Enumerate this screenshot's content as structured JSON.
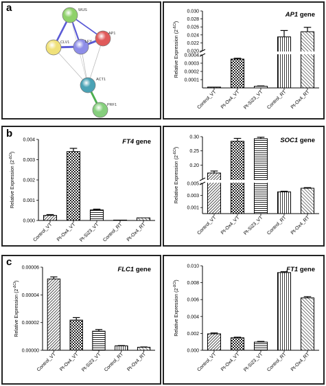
{
  "panel_labels": {
    "a": "a",
    "b": "b",
    "c": "c"
  },
  "network": {
    "nodes": [
      {
        "id": "wus",
        "label": "WUS",
        "color": "#8fd16a"
      },
      {
        "id": "clv1",
        "label": "CLV1",
        "color": "#f0e17a"
      },
      {
        "id": "lfy",
        "label": "LFY",
        "color": "#8e8ee8"
      },
      {
        "id": "ap1",
        "label": "AP1",
        "color": "#e05a5a"
      },
      {
        "id": "act1",
        "label": "ACT1",
        "color": "#4aa2b5"
      },
      {
        "id": "prf1",
        "label": "PRF1",
        "color": "#86cf7d"
      }
    ]
  },
  "chart_data": [
    {
      "id": "ap1",
      "type": "bar",
      "title_italic": "AP1",
      "title_rest": " gene",
      "ylabel": "Relative Expression (2",
      "ylabel_sup": "-ΔCt",
      "ylabel_close": ")",
      "categories": [
        "Control_VT",
        "Pt-Ox4_VT",
        "Pt-Si23_VT",
        "Control_RT",
        "Pt-Ox4_RT"
      ],
      "values": [
        1e-05,
        0.00035,
        2e-05,
        0.0235,
        0.0248
      ],
      "errors": [
        8e-07,
        1e-05,
        4e-06,
        0.0016,
        0.0011
      ],
      "patterns": [
        "stripe",
        "check",
        "hline",
        "vline",
        "diag"
      ],
      "axis_break": true,
      "segments": [
        {
          "range": [
            0.02,
            0.03
          ],
          "ticks": [
            "0.030",
            "0.028",
            "0.026",
            "0.024",
            "0.022",
            "0.020"
          ],
          "tick_values": [
            0.03,
            0.028,
            0.026,
            0.024,
            0.022,
            0.02
          ]
        },
        {
          "range": [
            0,
            0.0004
          ],
          "ticks": [
            "0.0004",
            "0.0003",
            "0.0002",
            "0.0001"
          ],
          "tick_values": [
            0.0004,
            0.0003,
            0.0002,
            0.0001
          ]
        }
      ]
    },
    {
      "id": "ft4",
      "type": "bar",
      "title_italic": "FT4",
      "title_rest": " gene",
      "ylabel": "Relative Expression (2",
      "ylabel_sup": "-ΔCt",
      "ylabel_close": ")",
      "categories": [
        "Control_VT",
        "Pt-Ox4_VT",
        "Pt-Si23_VT",
        "Control_RT",
        "Pt-Ox4_RT"
      ],
      "values": [
        0.00025,
        0.0034,
        0.00052,
        5e-06,
        0.00013
      ],
      "errors": [
        4e-05,
        0.00016,
        4e-05,
        2e-06,
        1e-05
      ],
      "patterns": [
        "stripe",
        "check",
        "hline",
        "vline",
        "diag"
      ],
      "axis_break": false,
      "segments": [
        {
          "range": [
            0,
            0.004
          ],
          "ticks": [
            "0.004",
            "0.003",
            "0.002",
            "0.001",
            "0.000"
          ],
          "tick_values": [
            0.004,
            0.003,
            0.002,
            0.001,
            0
          ]
        }
      ]
    },
    {
      "id": "soc1",
      "type": "bar",
      "title_italic": "SOC1",
      "title_rest": " gene",
      "ylabel": "Relative Expression (2",
      "ylabel_sup": "-ΔCt",
      "ylabel_close": ")",
      "categories": [
        "Control_VT",
        "Pt-Ox4_VT",
        "Pt-Si23_VT",
        "Control_RT",
        "Pt-Ox4_RT"
      ],
      "values": [
        0.172,
        0.284,
        0.293,
        0.0036,
        0.0042
      ],
      "errors": [
        0.007,
        0.01,
        0.005,
        0.0001,
        0.0001
      ],
      "patterns": [
        "stripe",
        "check",
        "hline",
        "vline",
        "diag"
      ],
      "axis_break": true,
      "segments": [
        {
          "range": [
            0.15,
            0.3
          ],
          "ticks": [
            "0.30",
            "0.25",
            "0.20"
          ],
          "tick_values": [
            0.3,
            0.25,
            0.2
          ]
        },
        {
          "range": [
            0,
            0.005
          ],
          "ticks": [
            "0.005",
            "0.003",
            "0.001"
          ],
          "tick_values": [
            0.005,
            0.003,
            0.001
          ]
        }
      ]
    },
    {
      "id": "flc1",
      "type": "bar",
      "title_italic": "FLC1",
      "title_rest": " gene",
      "ylabel": "Relative Expression (2",
      "ylabel_sup": "-ΔCt",
      "ylabel_close": ")",
      "categories": [
        "Control_VT",
        "Pt-Ox4_VT",
        "Pt-Si23_VT",
        "Control_RT",
        "Pt-Ox4_RT"
      ],
      "values": [
        5.15e-05,
        2.18e-05,
        1.38e-05,
        3.2e-06,
        2.2e-06
      ],
      "errors": [
        1.5e-06,
        1.8e-06,
        1.2e-06,
        2e-07,
        2e-07
      ],
      "patterns": [
        "stripe",
        "check",
        "hline",
        "vline",
        "diag"
      ],
      "axis_break": false,
      "segments": [
        {
          "range": [
            0,
            6e-05
          ],
          "ticks": [
            "0.00006",
            "0.00004",
            "0.00002",
            "0.00000"
          ],
          "tick_values": [
            6e-05,
            4e-05,
            2e-05,
            0
          ]
        }
      ]
    },
    {
      "id": "ft1",
      "type": "bar",
      "title_italic": "FT1",
      "title_rest": " gene",
      "ylabel": "Relative Expression (2",
      "ylabel_sup": "-ΔCt",
      "ylabel_close": ")",
      "categories": [
        "Control_VT",
        "Pt-Ox4_VT",
        "Pt-Si23_VT",
        "Control_RT",
        "Pt-Ox4_RT"
      ],
      "values": [
        0.00195,
        0.00148,
        0.00097,
        0.0092,
        0.0062
      ],
      "errors": [
        0.0001,
        7e-05,
        8e-05,
        0.0001,
        0.00015
      ],
      "patterns": [
        "stripe",
        "check",
        "hline",
        "vline",
        "diag"
      ],
      "axis_break": false,
      "segments": [
        {
          "range": [
            0,
            0.01
          ],
          "ticks": [
            "0.010",
            "0.008",
            "0.006",
            "0.004",
            "0.002",
            "0.000"
          ],
          "tick_values": [
            0.01,
            0.008,
            0.006,
            0.004,
            0.002,
            0
          ]
        }
      ]
    }
  ]
}
